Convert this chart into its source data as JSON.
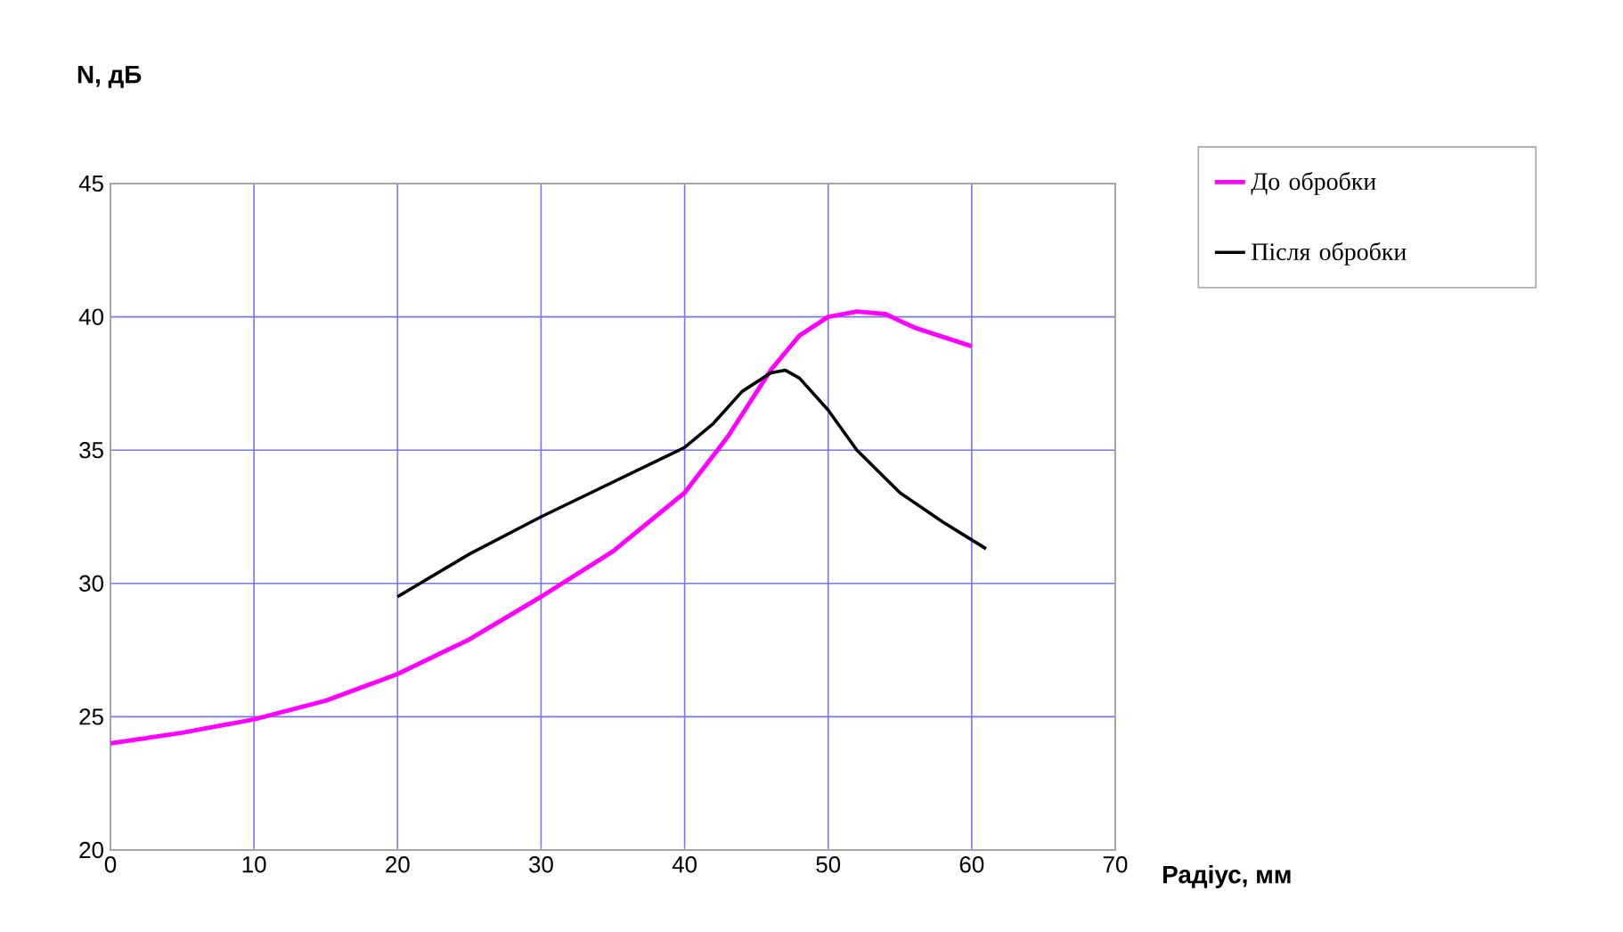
{
  "chart_data": {
    "type": "line",
    "ylabel": "N, дБ",
    "xlabel": "Радіус, мм",
    "xlim": [
      0,
      70
    ],
    "xticks": [
      0,
      10,
      20,
      30,
      40,
      50,
      60,
      70
    ],
    "ylim": [
      20,
      45
    ],
    "yticks": [
      20,
      25,
      30,
      35,
      40,
      45
    ],
    "grid": true,
    "legend": "right",
    "marker": "none",
    "line_style": "solid",
    "series": [
      {
        "name": "До обробки",
        "color": "#ff00ff",
        "x": [
          0,
          5,
          10,
          15,
          20,
          25,
          30,
          35,
          40,
          43,
          46,
          48,
          50,
          52,
          54,
          56,
          60
        ],
        "values": [
          24.0,
          24.4,
          24.9,
          25.6,
          26.6,
          27.9,
          29.5,
          31.2,
          33.4,
          35.5,
          38.0,
          39.3,
          40.0,
          40.2,
          40.1,
          39.6,
          38.9
        ]
      },
      {
        "name": "Після обробки",
        "color": "#000000",
        "x": [
          20,
          25,
          30,
          35,
          40,
          42,
          44,
          46,
          47,
          48,
          50,
          52,
          55,
          58,
          61
        ],
        "values": [
          29.5,
          31.1,
          32.5,
          33.8,
          35.1,
          36.0,
          37.2,
          37.9,
          38.0,
          37.7,
          36.5,
          35.0,
          33.4,
          32.3,
          31.3
        ]
      }
    ]
  }
}
